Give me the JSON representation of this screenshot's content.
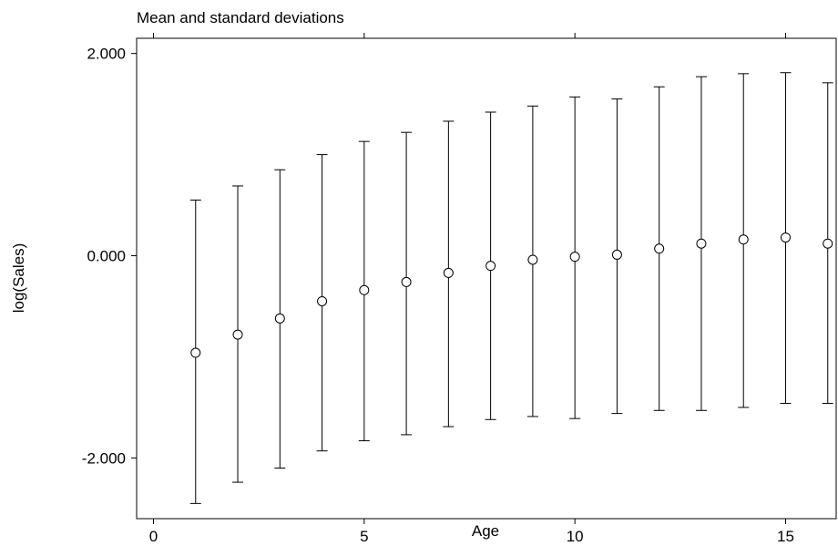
{
  "chart_data": {
    "type": "scatter",
    "title": "Mean and standard deviations",
    "xlabel": "Age",
    "ylabel": "log(Sales)",
    "xlim": [
      -0.4,
      16.2
    ],
    "ylim": [
      -2.6,
      2.15
    ],
    "x_ticks": [
      0,
      5,
      10,
      15
    ],
    "x_tick_labels": [
      "0",
      "5",
      "10",
      "15"
    ],
    "y_ticks": [
      2,
      0,
      -2
    ],
    "y_tick_labels": [
      "2.000",
      "0.000",
      "-2.000"
    ],
    "grid": false,
    "legend": "none",
    "series": [
      {
        "x": [
          1,
          2,
          3,
          4,
          5,
          6,
          7,
          8,
          9,
          10,
          11,
          12,
          13,
          14,
          15,
          16
        ],
        "mean": [
          -0.96,
          -0.78,
          -0.62,
          -0.45,
          -0.34,
          -0.26,
          -0.17,
          -0.1,
          -0.04,
          -0.01,
          0.01,
          0.07,
          0.12,
          0.16,
          0.18,
          0.12
        ],
        "upper": [
          0.55,
          0.69,
          0.85,
          1.0,
          1.13,
          1.22,
          1.33,
          1.42,
          1.48,
          1.57,
          1.55,
          1.67,
          1.77,
          1.8,
          1.81,
          1.71
        ],
        "lower": [
          -2.45,
          -2.24,
          -2.1,
          -1.93,
          -1.83,
          -1.77,
          -1.69,
          -1.62,
          -1.59,
          -1.61,
          -1.56,
          -1.53,
          -1.53,
          -1.5,
          -1.46,
          -1.46
        ]
      }
    ]
  }
}
